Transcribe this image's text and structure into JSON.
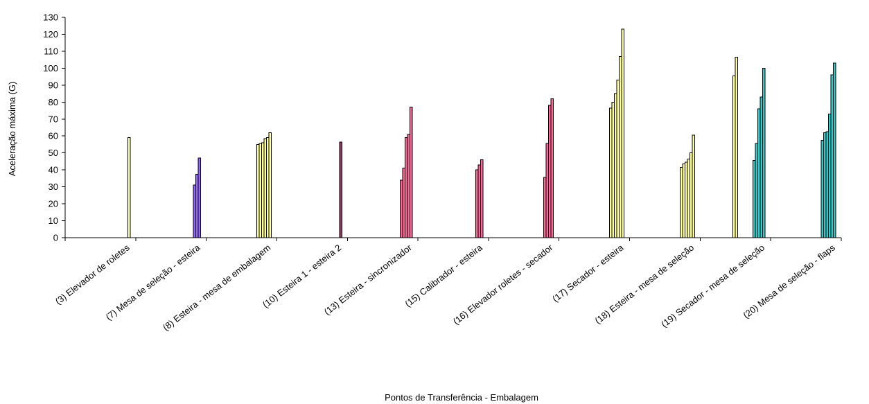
{
  "chart_data": {
    "type": "bar",
    "title": "",
    "xlabel": "Pontos de Transferência - Embalagem",
    "ylabel": "Aceleração máxima (G)",
    "ylim": [
      0,
      130
    ],
    "yticks": [
      0,
      10,
      20,
      30,
      40,
      50,
      60,
      70,
      80,
      90,
      100,
      110,
      120,
      130
    ],
    "grid": false,
    "legend": "none",
    "categories": [
      "(3) Elevador de roletes",
      "(7) Mesa de seleção - esteira",
      "(8) Esteira - mesa de embalagem",
      "(10) Esteira 1 - esteira 2",
      "(13) Esteira - sincronizador",
      "(15) Calibrador - esteira",
      "(16) Elevador roletes - secador",
      "(17) Secador - esteira",
      "(18) Esteira - mesa de seleção",
      "(19) Secador - mesa de seleção",
      "(20) Mesa de seleção - flaps"
    ],
    "groups": [
      {
        "category": "(3) Elevador de roletes",
        "color": "#ffff99",
        "values": [
          59
        ]
      },
      {
        "category": "(7) Mesa de seleção - esteira",
        "color": "#9966ff",
        "values": [
          31,
          37.5,
          47
        ]
      },
      {
        "category": "(8) Esteira - mesa de embalagem",
        "color": "#ffff99",
        "values": [
          55,
          55.5,
          56,
          58.5,
          59,
          62
        ]
      },
      {
        "category": "(10) Esteira 1 - esteira 2",
        "color": "#993366",
        "values": [
          56.5
        ]
      },
      {
        "category": "(13) Esteira - sincronizador",
        "color": "#ff6699",
        "values": [
          34,
          41,
          59,
          61,
          77
        ]
      },
      {
        "category": "(15) Calibrador - esteira",
        "color": "#ff6699",
        "values": [
          40,
          43,
          46
        ]
      },
      {
        "category": "(16) Elevador roletes - secador",
        "color": "#ff6699",
        "values": [
          35.5,
          55.5,
          78,
          82
        ]
      },
      {
        "category": "(17) Secador - esteira",
        "color": "#ffff99",
        "values": [
          76.5,
          80,
          85,
          93,
          107,
          123
        ]
      },
      {
        "category": "(18) Esteira - mesa de seleção",
        "color": "#ffff99",
        "values": [
          41.5,
          43.5,
          44.5,
          46.5,
          50,
          60.5
        ]
      },
      {
        "category": "(19) Secador - mesa de seleção",
        "color": "#ffff99",
        "values": [
          95.5,
          106.5
        ]
      },
      {
        "category": "(19) Secador - mesa de seleção",
        "color": "#33cccc",
        "values": [
          45.5,
          55.5,
          76,
          83,
          100
        ]
      },
      {
        "category": "(20) Mesa de seleção - flaps",
        "color": "#33cccc",
        "values": [
          57.5,
          62,
          62.5,
          73,
          96,
          103
        ]
      }
    ]
  }
}
